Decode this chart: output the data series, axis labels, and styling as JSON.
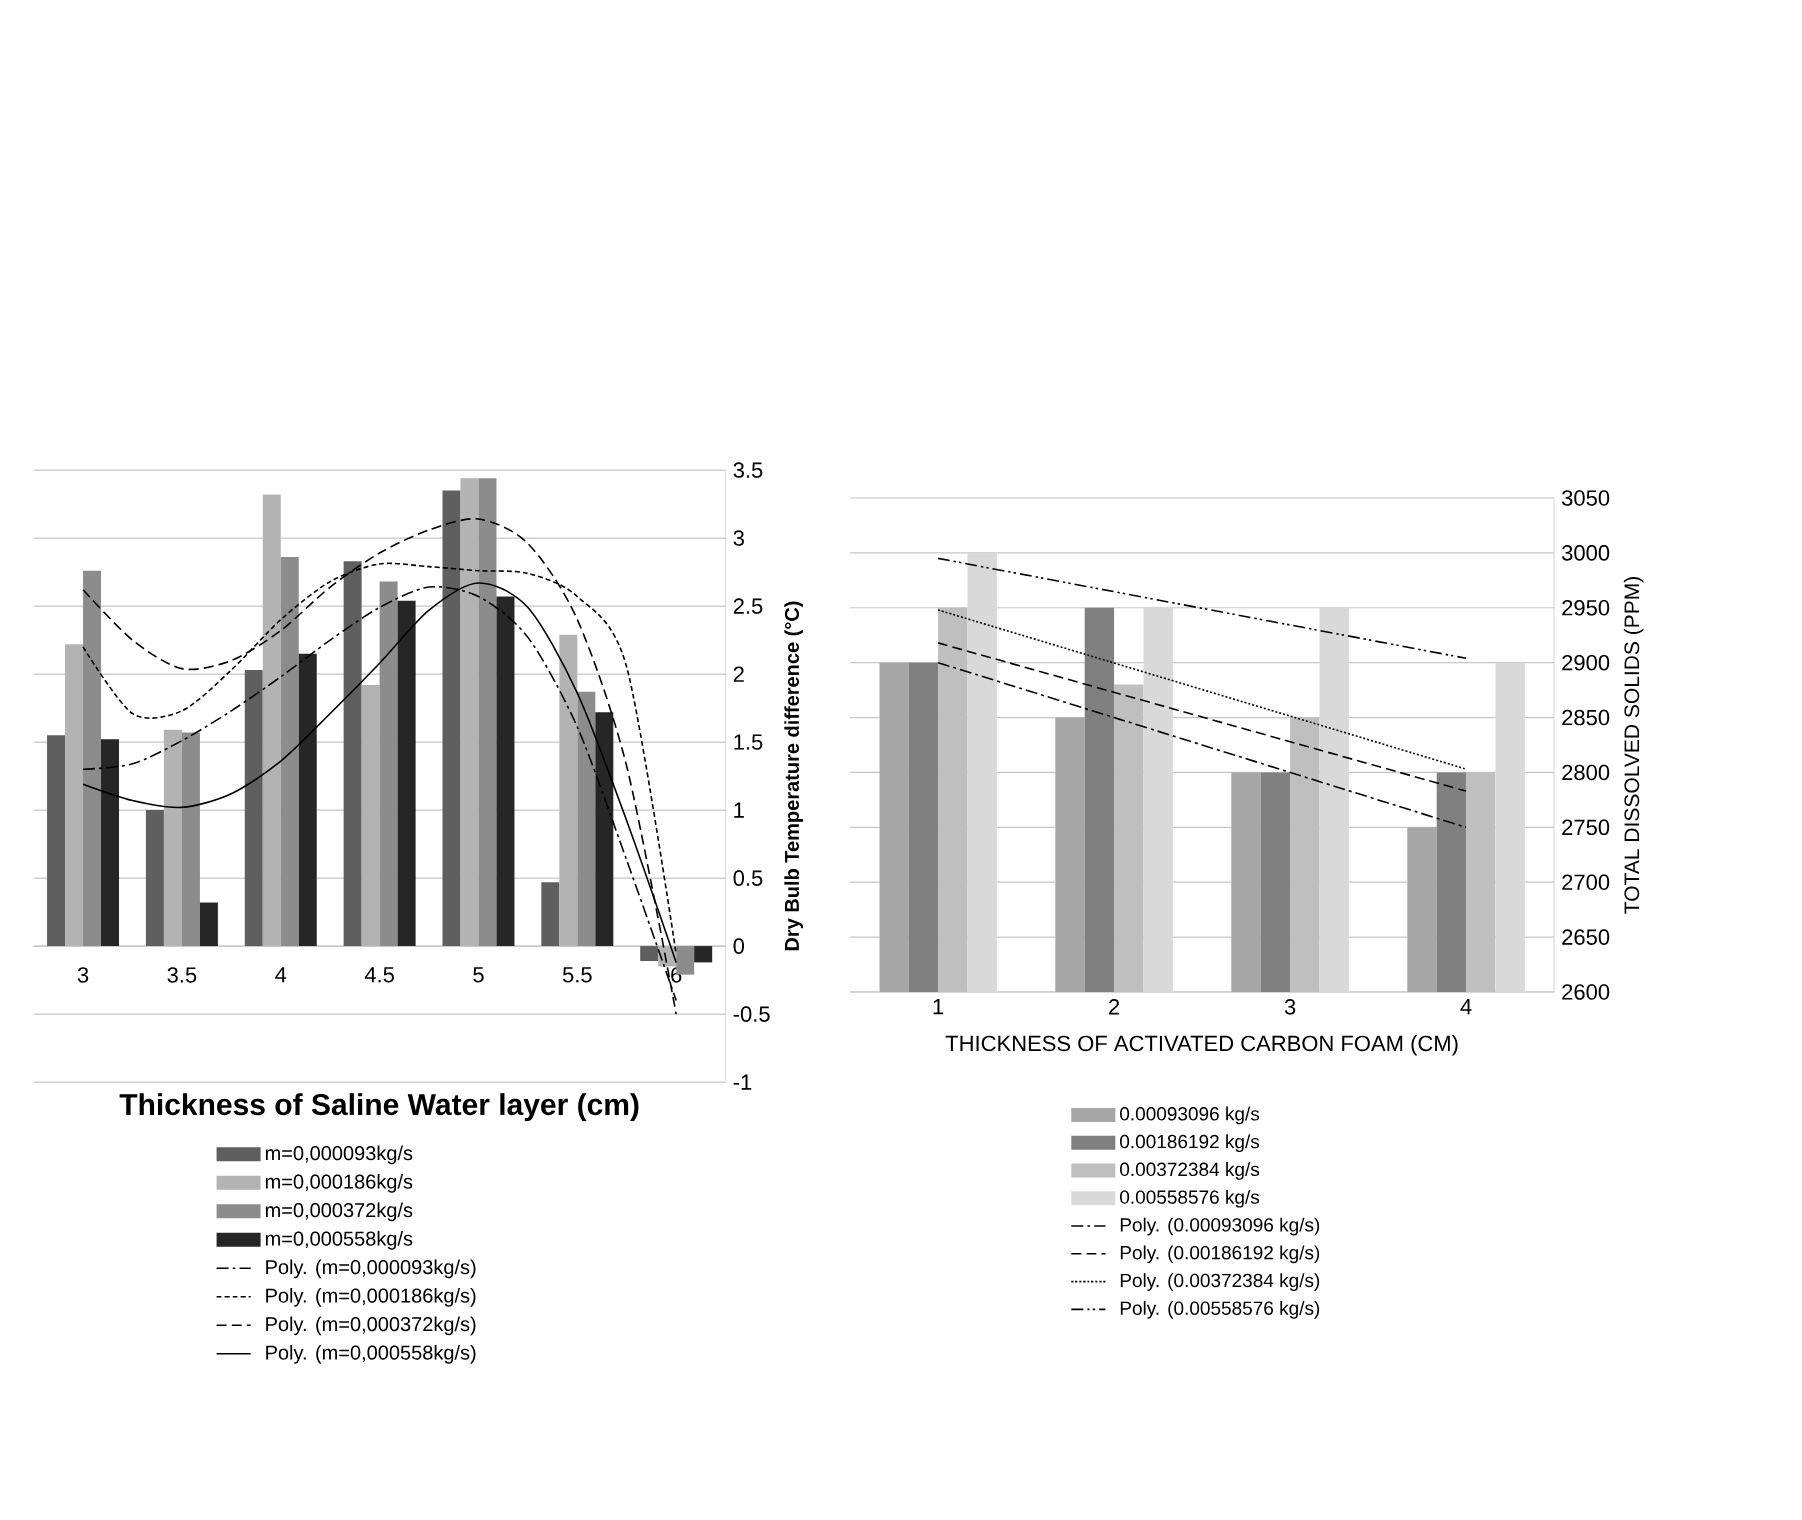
{
  "chart_data": [
    {
      "type": "bar",
      "xlabel": "Thickness of Saline Water layer (cm)",
      "ylabel": "Dry Bulb Temperature difference (°C)",
      "x": [
        3,
        3.5,
        4,
        4.5,
        5,
        5.5,
        6
      ],
      "xlim": [
        2.75,
        6.25
      ],
      "xticks": [
        3,
        3.5,
        4,
        4.5,
        5,
        5.5,
        6
      ],
      "ylim": [
        -1,
        3.5
      ],
      "yticks": [
        -1,
        -0.5,
        0,
        0.5,
        1,
        1.5,
        2,
        2.5,
        3,
        3.5
      ],
      "grid": "y",
      "legend": "bottom",
      "series": [
        {
          "name": "m=0,000093kg/s",
          "color": "#5f5f5f",
          "values": [
            1.55,
            1.0,
            2.03,
            2.83,
            3.35,
            0.47,
            -0.11
          ]
        },
        {
          "name": "m=0,000186kg/s",
          "color": "#b3b3b3",
          "values": [
            2.22,
            1.59,
            3.32,
            1.92,
            3.44,
            2.29,
            -0.15
          ]
        },
        {
          "name": "m=0,000372kg/s",
          "color": "#8c8c8c",
          "values": [
            2.76,
            1.57,
            2.86,
            2.68,
            3.44,
            1.87,
            -0.21
          ]
        },
        {
          "name": "m=0,000558kg/s",
          "color": "#262626",
          "values": [
            1.52,
            0.32,
            2.15,
            2.54,
            2.57,
            1.72,
            -0.12
          ]
        },
        {
          "name": "Poly. (m=0,000093kg/s)",
          "type": "line",
          "color": "#000000",
          "line_style": "dashdot",
          "x": [
            3,
            3.25,
            3.5,
            3.75,
            4,
            4.25,
            4.5,
            4.75,
            5,
            5.25,
            5.5,
            5.75,
            6
          ],
          "values": [
            1.3,
            1.34,
            1.51,
            1.73,
            1.98,
            2.25,
            2.49,
            2.64,
            2.57,
            2.27,
            1.61,
            0.63,
            -0.4
          ]
        },
        {
          "name": "Poly. (m=0,000186kg/s)",
          "type": "line",
          "color": "#000000",
          "line_style": "dashed",
          "x": [
            3,
            3.25,
            3.5,
            3.75,
            4,
            4.25,
            4.5,
            4.75,
            5,
            5.25,
            5.5,
            5.75,
            6
          ],
          "values": [
            2.2,
            1.71,
            1.73,
            2.03,
            2.4,
            2.68,
            2.81,
            2.79,
            2.76,
            2.74,
            2.57,
            2.05,
            -0.06
          ]
        },
        {
          "name": "Poly. (m=0,000372kg/s)",
          "type": "line",
          "color": "#000000",
          "line_style": "longdashed",
          "x": [
            3,
            3.25,
            3.5,
            3.75,
            4,
            4.25,
            4.5,
            4.75,
            5,
            5.25,
            5.5,
            5.75,
            6
          ],
          "values": [
            2.62,
            2.25,
            2.04,
            2.1,
            2.32,
            2.64,
            2.89,
            3.06,
            3.14,
            2.96,
            2.4,
            1.32,
            -0.5
          ]
        },
        {
          "name": "Poly. (m=0,000558kg/s)",
          "type": "line",
          "color": "#000000",
          "line_style": "solid",
          "x": [
            3,
            3.25,
            3.5,
            3.75,
            4,
            4.25,
            4.5,
            4.75,
            5,
            5.25,
            5.5,
            5.75,
            6
          ],
          "values": [
            1.19,
            1.07,
            1.02,
            1.12,
            1.36,
            1.71,
            2.08,
            2.47,
            2.67,
            2.49,
            1.86,
            0.92,
            -0.12
          ]
        }
      ]
    },
    {
      "type": "bar",
      "xlabel": "THICKNESS OF ACTIVATED CARBON FOAM (CM)",
      "ylabel": "TOTAL DISSOLVED SOLIDS (PPM)",
      "x": [
        1,
        2,
        3,
        4
      ],
      "xlim": [
        0.5,
        4.5
      ],
      "xticks": [
        1,
        2,
        3,
        4
      ],
      "ylim": [
        2600,
        3050
      ],
      "yticks": [
        2600,
        2650,
        2700,
        2750,
        2800,
        2850,
        2900,
        2950,
        3000,
        3050
      ],
      "grid": "y",
      "legend": "bottom",
      "series": [
        {
          "name": "0.00093096 kg/s",
          "color": "#a6a6a6",
          "values": [
            2900,
            2850,
            2800,
            2750
          ]
        },
        {
          "name": "0.00186192 kg/s",
          "color": "#808080",
          "values": [
            2900,
            2950,
            2800,
            2800
          ]
        },
        {
          "name": "0.00372384 kg/s",
          "color": "#bfbfbf",
          "values": [
            2950,
            2880,
            2850,
            2800
          ]
        },
        {
          "name": "0.00558576 kg/s",
          "color": "#d9d9d9",
          "values": [
            3000,
            2950,
            2950,
            2900
          ]
        },
        {
          "name": "Poly. (0.00093096 kg/s)",
          "type": "line",
          "color": "#000000",
          "line_style": "dashdot",
          "x": [
            1,
            4
          ],
          "values": [
            2900,
            2750
          ]
        },
        {
          "name": "Poly. (0.00186192 kg/s)",
          "type": "line",
          "color": "#000000",
          "line_style": "longdashed",
          "x": [
            1,
            4
          ],
          "values": [
            2918,
            2783
          ]
        },
        {
          "name": "Poly. (0.00372384 kg/s)",
          "type": "line",
          "color": "#000000",
          "line_style": "dotted",
          "x": [
            1,
            4
          ],
          "values": [
            2948,
            2803
          ]
        },
        {
          "name": "Poly. (0.00558576 kg/s)",
          "type": "line",
          "color": "#000000",
          "line_style": "dashdotdot",
          "x": [
            1,
            4
          ],
          "values": [
            2995,
            2904
          ]
        }
      ]
    }
  ]
}
